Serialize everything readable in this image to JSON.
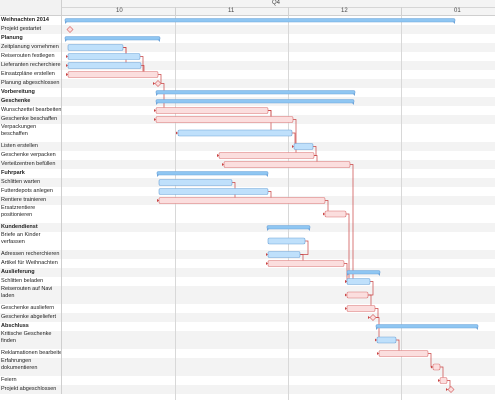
{
  "header": {
    "quarter": "Q4",
    "months": [
      "10",
      "11",
      "12",
      "01"
    ]
  },
  "colors": {
    "group_bar": "#8fc6f2",
    "task_blue": "#bfe0fb",
    "task_pink": "#fbdede",
    "task_pink_border": "#d97070",
    "task_blue_border": "#6ea3d8",
    "dependency_line": "#c94242",
    "row_alt": "#f3f3f3"
  },
  "rows": [
    {
      "label": "Weihnachten 2014",
      "kind": "group",
      "icon": ""
    },
    {
      "label": "Projekt gestartet",
      "kind": "milestone",
      "icon": "diamond-icon"
    },
    {
      "label": "Planung",
      "kind": "group",
      "icon": ""
    },
    {
      "label": "Zeitplanung vornehmen",
      "kind": "task",
      "icon": ""
    },
    {
      "label": "Reiserouten festlegen",
      "kind": "task",
      "icon": ""
    },
    {
      "label": "Lieferanten recherchieren",
      "kind": "task",
      "icon": ""
    },
    {
      "label": "Einsatzpläne erstellen",
      "kind": "task",
      "icon": ""
    },
    {
      "label": "Planung abgeschlossen",
      "kind": "milestone",
      "icon": "diamond-icon"
    },
    {
      "label": "Vorbereitung",
      "kind": "group",
      "icon": ""
    },
    {
      "label": "Geschenke",
      "kind": "group",
      "icon": ""
    },
    {
      "label": "Wunschzettel bearbeiten",
      "kind": "task",
      "icon": ""
    },
    {
      "label": "Geschenke beschaffen",
      "kind": "task",
      "icon": ""
    },
    {
      "label": "Verpackungen beschaffen",
      "kind": "task",
      "icon": ""
    },
    {
      "label": "Listen erstellen",
      "kind": "task",
      "icon": ""
    },
    {
      "label": "Geschenke verpacken",
      "kind": "task",
      "icon": ""
    },
    {
      "label": "Verteilzentren befüllen",
      "kind": "task",
      "icon": ""
    },
    {
      "label": "Fuhrpark",
      "kind": "group",
      "icon": ""
    },
    {
      "label": "Schlitten warten",
      "kind": "task",
      "icon": ""
    },
    {
      "label": "Futterdepots anlegen",
      "kind": "task",
      "icon": ""
    },
    {
      "label": "Rentiere trainieren",
      "kind": "task",
      "icon": ""
    },
    {
      "label": "Ersatzrentiere positionieren",
      "kind": "task",
      "icon": ""
    },
    {
      "label": "Kundendienst",
      "kind": "group",
      "icon": ""
    },
    {
      "label": "Briefe an Kinder verfassen",
      "kind": "task",
      "icon": ""
    },
    {
      "label": "Adressen recherchieren",
      "kind": "task",
      "icon": ""
    },
    {
      "label": "Artikel für Weihnachten",
      "kind": "task",
      "icon": ""
    },
    {
      "label": "Auslieferung",
      "kind": "group",
      "icon": ""
    },
    {
      "label": "Schlitten beladen",
      "kind": "task",
      "icon": ""
    },
    {
      "label": "Reiserouten auf Navi laden",
      "kind": "task",
      "icon": ""
    },
    {
      "label": "Geschenke ausliefern",
      "kind": "task",
      "icon": ""
    },
    {
      "label": "Geschenke abgeliefert",
      "kind": "milestone",
      "icon": "diamond-icon"
    },
    {
      "label": "Abschluss",
      "kind": "group",
      "icon": ""
    },
    {
      "label": "Kritische Geschenke finden",
      "kind": "task",
      "icon": ""
    },
    {
      "label": "Reklamationen bearbeiten",
      "kind": "task",
      "icon": ""
    },
    {
      "label": "Erfahrungen dokumentieren",
      "kind": "task",
      "icon": ""
    },
    {
      "label": "Feiern",
      "kind": "task",
      "icon": ""
    },
    {
      "label": "Projekt abgeschlossen",
      "kind": "milestone",
      "icon": "diamond-icon"
    }
  ]
}
